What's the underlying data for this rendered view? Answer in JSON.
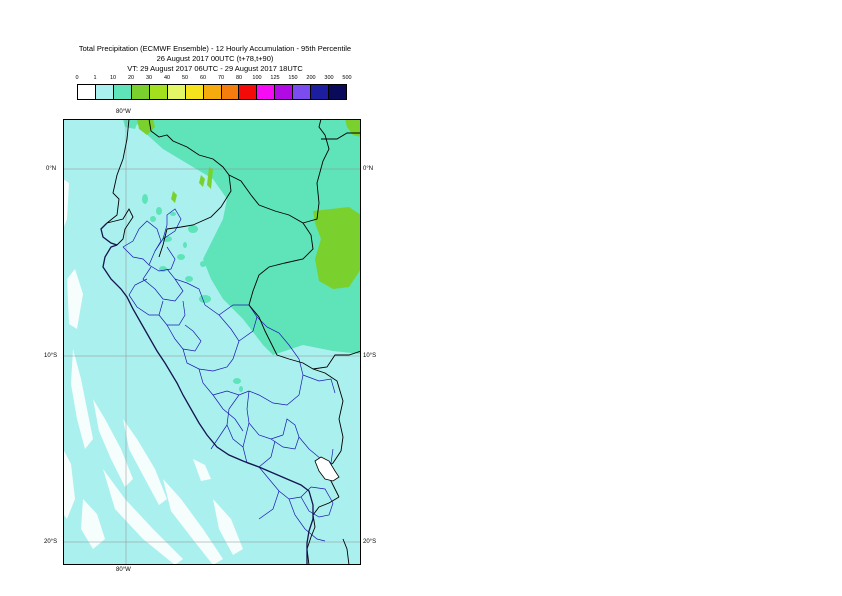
{
  "title": {
    "line1": "Total Precipitation (ECMWF Ensemble) - 12 Hourly Accumulation - 95th Percentile",
    "line2": "26 August 2017 00UTC (t+78,t+90)",
    "line3": "VT: 29 August 2017 06UTC - 29 August 2017 18UTC"
  },
  "legend": {
    "ticks": [
      "0",
      "1",
      "10",
      "20",
      "30",
      "40",
      "50",
      "60",
      "70",
      "80",
      "100",
      "125",
      "150",
      "200",
      "300",
      "500"
    ],
    "colors": [
      "#ffffff",
      "#aaf0ee",
      "#5fe3b9",
      "#7ad12d",
      "#a3e01e",
      "#e3f766",
      "#f5e31e",
      "#f5ab0e",
      "#f47d0e",
      "#f50a0a",
      "#f50cf5",
      "#b10ae4",
      "#7b4cf0",
      "#1d1d9f",
      "#0a0a5a"
    ]
  },
  "map": {
    "label_lon_top": "80°W",
    "label_lon_bottom": "80°W",
    "label_lat_0_left": "0°N",
    "label_lat_0_right": "0°N",
    "label_lat_10_left": "10°S",
    "label_lat_10_right": "10°S",
    "label_lat_20_left": "20°S",
    "label_lat_20_right": "20°S",
    "ocean_color": "#aaf0ee",
    "land_wet_color": "#5fe3b9",
    "land_heavy_color": "#7ad12d",
    "border_color": "#000000",
    "region_border_color": "#1a1ab3"
  }
}
